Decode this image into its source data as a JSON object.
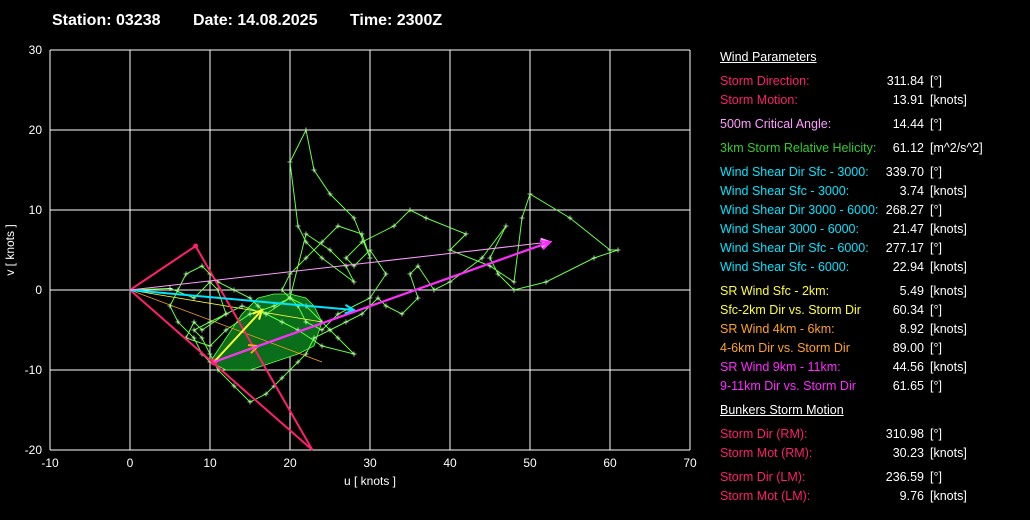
{
  "header": {
    "station": "Station: 03238",
    "date": "Date: 14.08.2025",
    "time": "Time: 2300Z"
  },
  "colors": {
    "background": "#000000",
    "grid": "#ffffff",
    "hodograph": "#66ff44",
    "area_fill": "#0b6e1a",
    "storm": "#ff1f6e",
    "shear_0_3": "#00e5ff",
    "sr_0_2": "#ffff33",
    "sr_4_6": "#ffa31f",
    "sr_9_11": "#ff2bff",
    "critical": "#ff9cff",
    "helicity": "#33cc33"
  },
  "chart_data": {
    "type": "scatter",
    "xlabel": "u  [ knots ]",
    "ylabel": "v  [ knots ]",
    "xlim": [
      -10,
      70
    ],
    "ylim": [
      -20,
      30
    ],
    "xticks": [
      "-10",
      "0",
      "10",
      "20",
      "30",
      "40",
      "50",
      "60",
      "70"
    ],
    "yticks": [
      "30",
      "20",
      "10",
      "0",
      "-10",
      "-20"
    ],
    "grid": true,
    "hodograph": {
      "x": [
        0,
        5,
        8,
        10,
        11,
        12,
        9,
        8,
        7,
        10,
        12,
        15,
        18,
        20,
        22,
        25,
        27,
        28,
        24,
        22,
        21,
        20,
        22,
        23,
        25,
        28,
        30,
        29,
        26,
        24,
        22,
        20,
        19,
        21,
        22,
        24,
        26,
        30,
        32,
        30,
        28,
        27,
        29,
        33,
        35,
        37,
        42,
        40,
        45,
        48,
        49,
        50,
        55,
        60,
        61,
        58,
        52,
        48,
        46,
        45,
        47,
        44,
        40,
        38,
        36,
        35,
        36,
        34,
        32,
        31,
        30,
        29,
        27,
        25,
        23,
        22,
        21,
        20,
        19,
        18,
        17,
        15,
        13,
        11,
        10,
        9,
        8,
        10,
        12,
        14,
        17,
        20,
        22,
        24,
        26,
        28,
        24,
        21,
        19,
        17,
        16,
        15,
        13,
        11,
        10,
        9,
        7,
        6,
        5,
        6,
        8,
        9,
        10,
        10.5
      ],
      "y": [
        0,
        0.2,
        -1,
        1,
        0,
        -3,
        -5,
        -4,
        -6,
        -7,
        -5,
        -3,
        -2,
        -1,
        7,
        5,
        3,
        1,
        4,
        6,
        8,
        16,
        20,
        15,
        12,
        9,
        4,
        7,
        8,
        6,
        4,
        2,
        0,
        -2,
        -4,
        -5,
        -3,
        -1,
        2,
        5,
        3,
        4,
        6,
        8,
        10,
        9,
        7,
        5,
        3,
        1,
        9,
        12,
        9,
        5,
        5,
        4,
        1,
        0,
        2,
        4,
        8,
        4,
        1,
        0,
        3,
        2,
        -1,
        -3,
        -2,
        -1,
        -2,
        -3,
        -4,
        -5,
        -6,
        -8,
        -9,
        -10,
        -11,
        -12,
        -13,
        -14,
        -12,
        -10,
        -8,
        -6,
        -5,
        -4,
        -3,
        -2,
        -3,
        -1,
        -2,
        -4,
        -6,
        -8,
        -7,
        -5,
        -4,
        -3,
        -2,
        -1,
        0,
        1,
        2,
        3,
        2,
        0,
        -2,
        -4,
        -6,
        -8,
        -9,
        -9
      ]
    },
    "shaded_area": {
      "x": [
        10,
        12,
        15,
        18,
        21,
        23,
        24,
        23,
        22,
        20,
        18,
        16,
        14,
        12,
        10
      ],
      "y": [
        -9,
        -10,
        -10,
        -9,
        -8,
        -7,
        -4,
        -2,
        -1,
        -0.5,
        -0.5,
        -1,
        -3,
        -6,
        -9
      ]
    },
    "storm_triangle": {
      "x": [
        0,
        8.2,
        22.8,
        0
      ],
      "y": [
        0,
        5.5,
        -20,
        0
      ]
    },
    "storm_points": {
      "rm": [
        10.5,
        -9.0
      ],
      "lm": [
        8.2,
        5.5
      ]
    },
    "vectors": [
      {
        "from": [
          0,
          0
        ],
        "to": [
          28,
          -2.5
        ],
        "color": "shear_0_3"
      },
      {
        "from": [
          10.5,
          -9
        ],
        "to": [
          16.5,
          -2.5
        ],
        "color": "sr_0_2"
      },
      {
        "from": [
          10.5,
          -9
        ],
        "to": [
          16,
          -7
        ],
        "color": "sr_4_6"
      },
      {
        "from": [
          16,
          -7
        ],
        "to": [
          52.5,
          6
        ],
        "color": "sr_9_11"
      },
      {
        "from": [
          0,
          0
        ],
        "to": [
          52.5,
          6
        ],
        "color": "critical"
      },
      {
        "from": [
          10.5,
          -9
        ],
        "to": [
          52.5,
          6
        ],
        "color": "sr_9_11"
      }
    ],
    "thin_lines": [
      {
        "from": [
          0,
          0
        ],
        "to": [
          22.8,
          -20
        ],
        "color": "shear_0_3"
      },
      {
        "from": [
          0,
          0
        ],
        "to": [
          24,
          -4
        ],
        "color": "sr_0_2"
      },
      {
        "from": [
          0,
          0
        ],
        "to": [
          24,
          -9
        ],
        "color": "sr_4_6"
      }
    ]
  },
  "panel": {
    "wind_title": "Wind Parameters",
    "bunkers_title": "Bunkers Storm Motion",
    "rows": [
      {
        "label": "Storm Direction:",
        "value": "311.84",
        "unit": "[°]",
        "color": "storm",
        "gap": false
      },
      {
        "label": "Storm Motion:",
        "value": "13.91",
        "unit": "[knots]",
        "color": "storm",
        "gap": false
      },
      {
        "label": "500m Critical Angle:",
        "value": "14.44",
        "unit": "[°]",
        "color": "critical",
        "gap": true
      },
      {
        "label": "3km Storm Relative Helicity:",
        "value": "61.12",
        "unit": "[m^2/s^2]",
        "color": "helicity",
        "gap": true
      },
      {
        "label": "Wind Shear Dir Sfc - 3000:",
        "value": "339.70",
        "unit": "[°]",
        "color": "shear_0_3",
        "gap": true
      },
      {
        "label": "Wind Shear Sfc - 3000:",
        "value": "3.74",
        "unit": "[knots]",
        "color": "shear_0_3",
        "gap": false
      },
      {
        "label": "Wind Shear Dir 3000 - 6000:",
        "value": "268.27",
        "unit": "[°]",
        "color": "shear_0_3",
        "gap": false
      },
      {
        "label": "Wind Shear 3000 - 6000:",
        "value": "21.47",
        "unit": "[knots]",
        "color": "shear_0_3",
        "gap": false
      },
      {
        "label": "Wind Shear Dir Sfc - 6000:",
        "value": "277.17",
        "unit": "[°]",
        "color": "shear_0_3",
        "gap": false
      },
      {
        "label": "Wind Shear Sfc - 6000:",
        "value": "22.94",
        "unit": "[knots]",
        "color": "shear_0_3",
        "gap": false
      },
      {
        "label": "SR Wind Sfc - 2km:",
        "value": "5.49",
        "unit": "[knots]",
        "color": "sr_0_2",
        "gap": true
      },
      {
        "label": "Sfc-2km Dir vs. Storm Dir",
        "value": "60.34",
        "unit": "[°]",
        "color": "sr_0_2",
        "gap": false
      },
      {
        "label": "SR Wind 4km - 6km:",
        "value": "8.92",
        "unit": "[knots]",
        "color": "sr_4_6",
        "gap": false
      },
      {
        "label": "4-6km Dir vs. Storm Dir",
        "value": "89.00",
        "unit": "[°]",
        "color": "sr_4_6",
        "gap": false
      },
      {
        "label": "SR Wind 9km - 11km:",
        "value": "44.56",
        "unit": "[knots]",
        "color": "sr_9_11",
        "gap": false
      },
      {
        "label": "9-11km Dir vs. Storm Dir",
        "value": "61.65",
        "unit": "[°]",
        "color": "sr_9_11",
        "gap": false
      }
    ],
    "bunkers_rows": [
      {
        "label": "Storm Dir (RM):",
        "value": "310.98",
        "unit": "[°]",
        "color": "storm",
        "gap": false
      },
      {
        "label": "Storm Mot (RM):",
        "value": "30.23",
        "unit": "[knots]",
        "color": "storm",
        "gap": false
      },
      {
        "label": "Storm Dir (LM):",
        "value": "236.59",
        "unit": "[°]",
        "color": "storm",
        "gap": true
      },
      {
        "label": "Storm Mot (LM):",
        "value": "9.76",
        "unit": "[knots]",
        "color": "storm",
        "gap": false
      }
    ]
  }
}
